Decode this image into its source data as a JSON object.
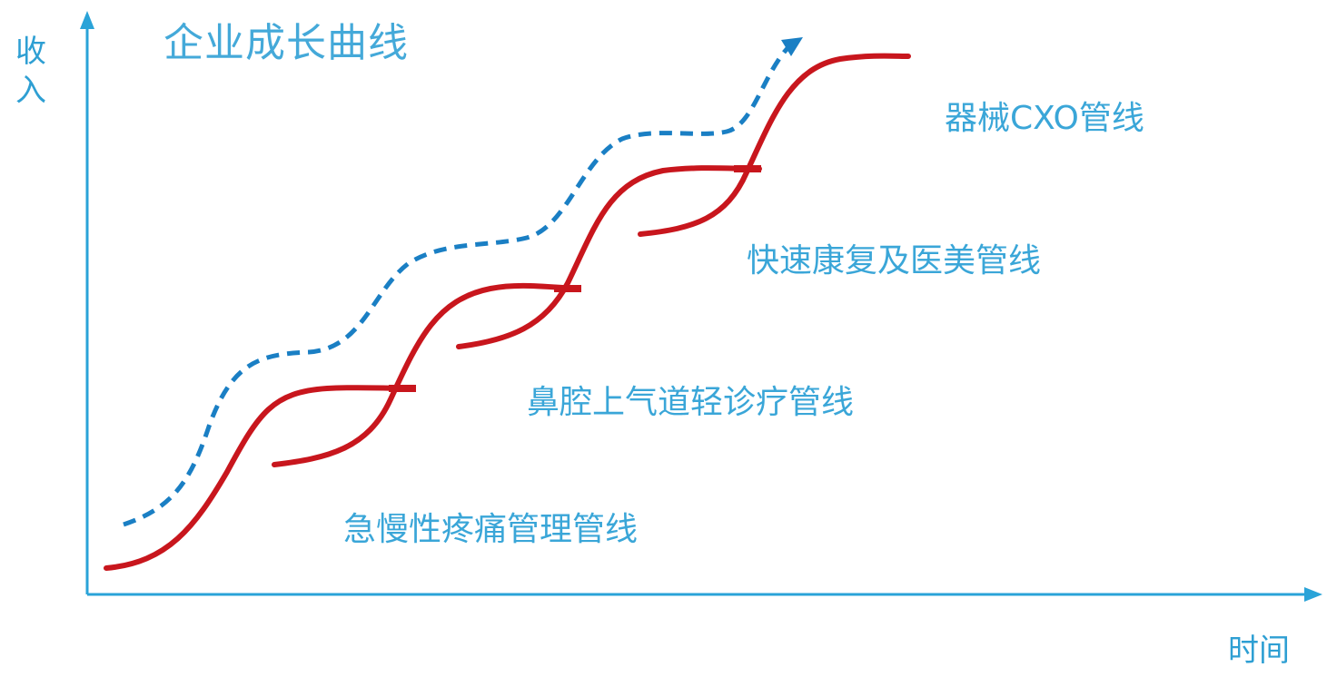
{
  "title": "企业成长曲线",
  "y_axis_label": "收入",
  "x_axis_label": "时间",
  "stages": [
    {
      "label": "急慢性疼痛管理管线"
    },
    {
      "label": "鼻腔上气道轻诊疗管线"
    },
    {
      "label": "快速康复及医美管线"
    },
    {
      "label": "器械CXO管线"
    }
  ],
  "colors": {
    "axis": "#2aa3d8",
    "curve": "#c8161d",
    "trend": "#1a7fc4",
    "label": "#3aa6d8"
  }
}
